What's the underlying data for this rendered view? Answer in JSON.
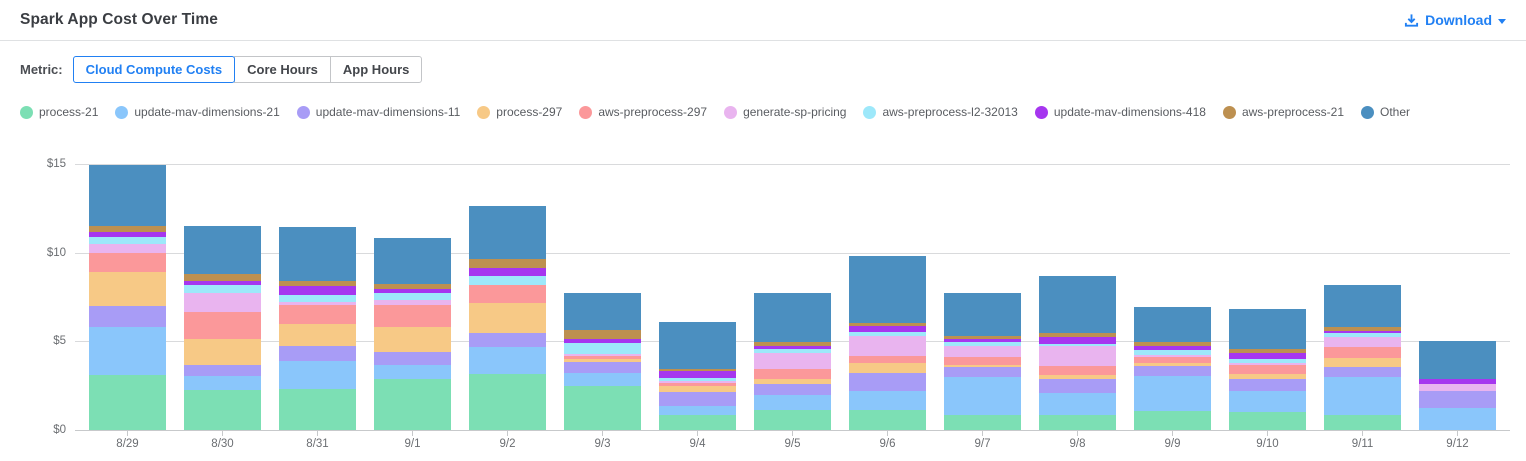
{
  "header": {
    "title": "Spark App Cost Over Time",
    "download_label": "Download"
  },
  "controls": {
    "metric_label": "Metric:",
    "tabs": [
      {
        "label": "Cloud Compute Costs",
        "active": true
      },
      {
        "label": "Core Hours",
        "active": false
      },
      {
        "label": "App Hours",
        "active": false
      }
    ]
  },
  "colors": {
    "accent": "#2180f3",
    "title_text": "#3a3d42",
    "axis_text": "#6b6e72",
    "legend_text": "#595c61",
    "gridline": "#d9dadc",
    "baseline": "#c7c9cb"
  },
  "chart_data": {
    "type": "bar",
    "stacked": true,
    "title": "Spark App Cost Over Time",
    "xlabel": "",
    "ylabel": "",
    "ylim": [
      0,
      15
    ],
    "grid": true,
    "legend_position": "top",
    "yticks": [
      {
        "value": 0,
        "label": "$0"
      },
      {
        "value": 5,
        "label": "$5"
      },
      {
        "value": 10,
        "label": "$10"
      },
      {
        "value": 15,
        "label": "$15"
      }
    ],
    "categories": [
      "8/29",
      "8/30",
      "8/31",
      "9/1",
      "9/2",
      "9/3",
      "9/4",
      "9/5",
      "9/6",
      "9/7",
      "9/8",
      "9/9",
      "9/10",
      "9/11",
      "9/12"
    ],
    "series": [
      {
        "name": "process-21",
        "color": "#7cdfb4",
        "values": [
          3.16,
          2.32,
          2.36,
          2.95,
          3.23,
          2.53,
          0.9,
          1.18,
          1.2,
          0.9,
          0.93,
          1.12,
          1.08,
          0.93,
          0
        ]
      },
      {
        "name": "update-mav-dimensions-21",
        "color": "#8ac6fb",
        "values": [
          2.73,
          0.78,
          1.57,
          0.75,
          1.5,
          0.73,
          0.52,
          0.84,
          1.08,
          2.15,
          1.23,
          1.98,
          1.16,
          2.12,
          1.31
        ]
      },
      {
        "name": "update-mav-dimensions-11",
        "color": "#a89cf6",
        "values": [
          1.18,
          0.6,
          0.86,
          0.75,
          0.79,
          0.66,
          0.79,
          0.65,
          1.01,
          0.56,
          0.75,
          0.56,
          0.71,
          0.56,
          0.93
        ]
      },
      {
        "name": "process-297",
        "color": "#f7c986",
        "values": [
          1.91,
          1.5,
          1.26,
          1.44,
          1.68,
          0.15,
          0.34,
          0.28,
          0.56,
          0.13,
          0.26,
          0.19,
          0.28,
          0.5,
          0
        ]
      },
      {
        "name": "aws-preprocess-297",
        "color": "#fb989a",
        "values": [
          1.05,
          1.53,
          1.03,
          1.21,
          1.03,
          0.15,
          0.15,
          0.56,
          0.37,
          0.43,
          0.52,
          0.32,
          0.5,
          0.62,
          0
        ]
      },
      {
        "name": "generate-sp-pricing",
        "color": "#e9b4ef",
        "values": [
          0.5,
          1.08,
          0.22,
          0.3,
          0,
          0.15,
          0.15,
          0.9,
          1.16,
          0.65,
          1.08,
          0.13,
          0.11,
          0.56,
          0.43
        ]
      },
      {
        "name": "aws-preprocess-l2-32013",
        "color": "#9de8fa",
        "values": [
          0.43,
          0.41,
          0.39,
          0.37,
          0.49,
          0.58,
          0.15,
          0.22,
          0.22,
          0.22,
          0.13,
          0.26,
          0.22,
          0.24,
          0
        ]
      },
      {
        "name": "update-mav-dimensions-418",
        "color": "#a636ef",
        "values": [
          0.26,
          0.24,
          0.47,
          0.22,
          0.45,
          0.23,
          0.37,
          0.19,
          0.3,
          0.15,
          0.43,
          0.22,
          0.34,
          0.13,
          0.28
        ]
      },
      {
        "name": "aws-preprocess-21",
        "color": "#bd9050",
        "values": [
          0.37,
          0.37,
          0.32,
          0.3,
          0.52,
          0.5,
          0.15,
          0.19,
          0.22,
          0.19,
          0.19,
          0.26,
          0.22,
          0.19,
          0
        ]
      },
      {
        "name": "Other",
        "color": "#4b8fc0",
        "values": [
          3.41,
          2.75,
          3.01,
          2.62,
          3.03,
          2.11,
          2.65,
          2.8,
          3.78,
          2.43,
          3.25,
          1.98,
          2.28,
          2.37,
          2.15
        ]
      }
    ]
  }
}
